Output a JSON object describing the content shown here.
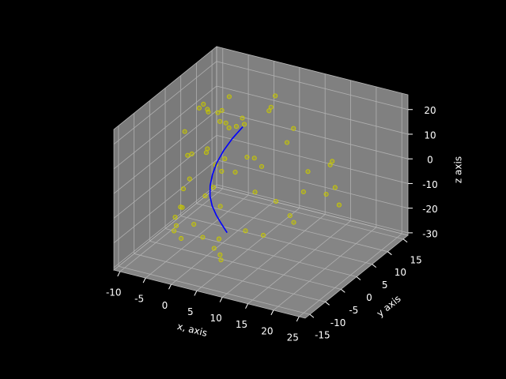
{
  "chart_data": {
    "type": "scatter3d",
    "xlabel": "x, axis",
    "ylabel": "y axis",
    "zlabel": "z axis",
    "xlim": [
      -11.2,
      26.2
    ],
    "ylim": [
      -16.5,
      16.5
    ],
    "zlim": [
      -31,
      26
    ],
    "xticks": [
      -10,
      -5,
      0,
      5,
      10,
      15,
      20,
      25
    ],
    "yticks": [
      -15,
      -10,
      -5,
      0,
      5,
      10,
      15
    ],
    "zticks": [
      -30,
      -20,
      -10,
      0,
      10,
      20
    ],
    "grid": true,
    "scatter": {
      "color": "#c8c800",
      "x": [
        -6,
        -5,
        -4,
        -7,
        -3,
        -5,
        -6,
        -2,
        -4,
        -8,
        -5,
        -3,
        -6,
        -4,
        -7,
        -2,
        -5,
        -3,
        -6,
        -4,
        -1,
        -5,
        -7,
        -3,
        -4,
        -6,
        -2,
        -5,
        -8,
        -3,
        -4,
        -6,
        0,
        2,
        3,
        5,
        1,
        4,
        6,
        8,
        10,
        12,
        15,
        18,
        20,
        22,
        7,
        9,
        11,
        14,
        3,
        5,
        16,
        24,
        13,
        6,
        19,
        2,
        4,
        10
      ],
      "y": [
        5,
        8,
        2,
        10,
        6,
        -3,
        0,
        4,
        -6,
        7,
        3,
        -8,
        9,
        1,
        -2,
        -10,
        6,
        2,
        -5,
        11,
        8,
        -1,
        4,
        7,
        -4,
        12,
        3,
        -7,
        1,
        9,
        -9,
        5,
        7,
        -4,
        10,
        2,
        -8,
        6,
        -2,
        4,
        -6,
        1,
        -3,
        5,
        -10,
        0,
        -12,
        8,
        -5,
        3,
        12,
        -9,
        7,
        -2,
        -14,
        -11,
        4,
        -6,
        9,
        11
      ],
      "z": [
        15,
        12,
        18,
        8,
        10,
        5,
        2,
        -2,
        -5,
        14,
        0,
        -10,
        6,
        -15,
        -18,
        -20,
        -8,
        -12,
        -22,
        3,
        11,
        -25,
        16,
        7,
        -3,
        13,
        -6,
        -16,
        9,
        -13,
        -19,
        -1,
        10,
        -11,
        14,
        4,
        -20,
        -4,
        9,
        -14,
        1,
        15,
        -9,
        5,
        -2,
        3,
        -22,
        12,
        -17,
        -6,
        18,
        -24,
        -10,
        -1,
        -5,
        -15,
        8,
        -26,
        17,
        -8
      ]
    },
    "line": {
      "color": "#0000ff",
      "x": [
        1.5,
        0.9,
        0.3,
        -0.2,
        -0.5,
        -0.6,
        -0.5,
        -0.2,
        0.4,
        1.3,
        2.5
      ],
      "y": [
        -1,
        -1.8,
        -2.5,
        -3,
        -3.2,
        -3,
        -2.4,
        -1.5,
        -0.3,
        1,
        2.4
      ],
      "z": [
        -25,
        -21,
        -17,
        -13,
        -9,
        -5,
        -1,
        3,
        7,
        11,
        15
      ]
    }
  }
}
